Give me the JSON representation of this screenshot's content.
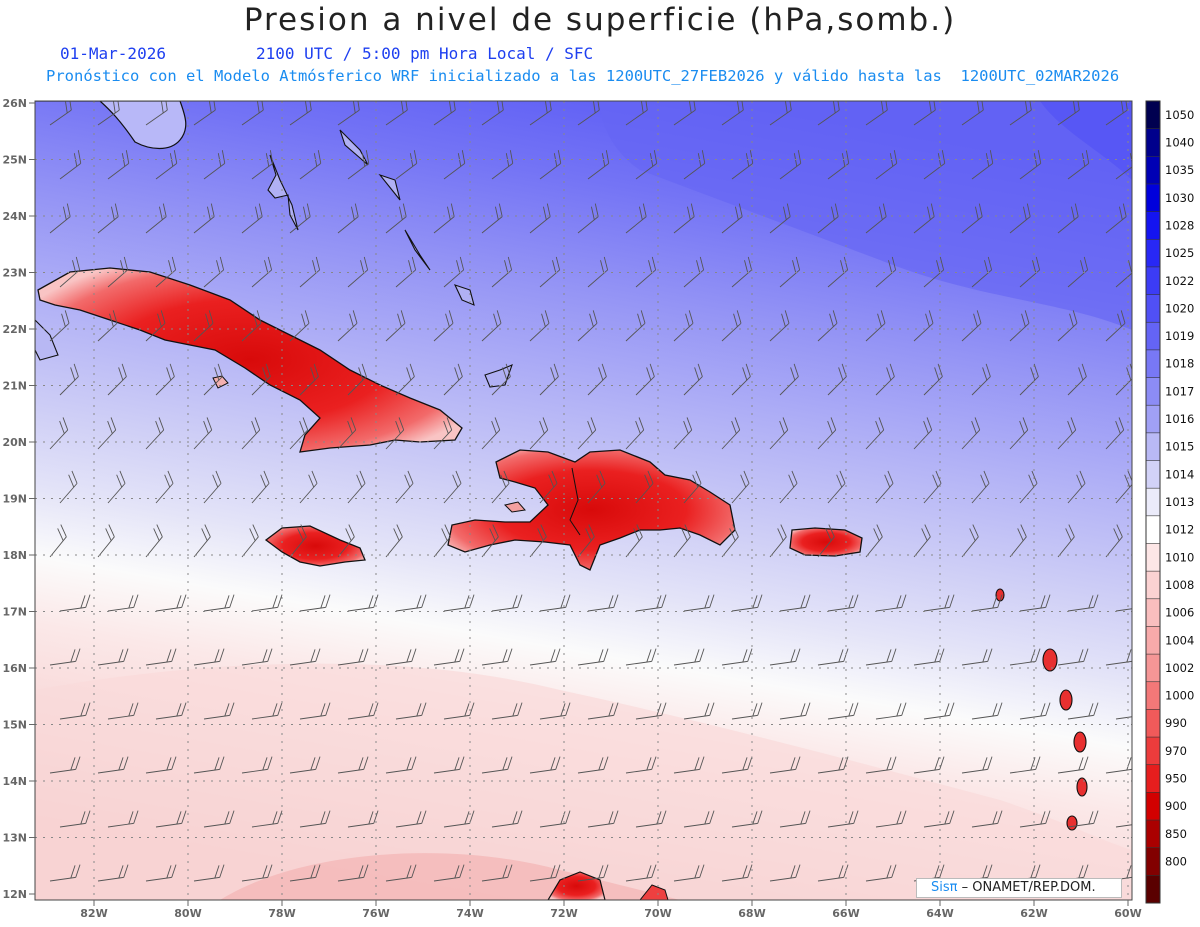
{
  "header": {
    "title": "Presion a nivel de superficie (hPa,somb.)",
    "date": "01-Mar-2026",
    "time_info": "2100 UTC / 5:00 pm Hora Local / SFC",
    "model_info": "Pronóstico con el Modelo Atmósferico WRF inicializado a las 1200UTC_27FEB2026 y válido hasta las  1200UTC_02MAR2026"
  },
  "map": {
    "lat_labels": [
      "26N",
      "25N",
      "24N",
      "23N",
      "22N",
      "21N",
      "20N",
      "19N",
      "18N",
      "17N",
      "16N",
      "15N",
      "14N",
      "13N",
      "12N"
    ],
    "lon_labels": [
      "82W",
      "80W",
      "78W",
      "76W",
      "74W",
      "72W",
      "70W",
      "68W",
      "66W",
      "64W",
      "62W",
      "60W"
    ],
    "land_colors": {
      "high": "#e81010",
      "mid": "#f05050",
      "low": "#f8b8b8"
    },
    "sea_gradient": [
      "#5d5df5",
      "#7575f5",
      "#9494f5",
      "#b0b0f5",
      "#cacaf5",
      "#e2e2f7",
      "#fafafa",
      "#fbe8e8",
      "#f8d6d6",
      "#f5c8c8"
    ]
  },
  "colorbar": {
    "labels": [
      "1050",
      "1040",
      "1035",
      "1030",
      "1028",
      "1025",
      "1022",
      "1020",
      "1019",
      "1018",
      "1017",
      "1016",
      "1015",
      "1014",
      "1013",
      "1012",
      "1010",
      "1008",
      "1006",
      "1004",
      "1002",
      "1000",
      "990",
      "970",
      "950",
      "900",
      "850",
      "800"
    ],
    "colors": [
      "#000050",
      "#00008c",
      "#0000b4",
      "#0000dc",
      "#1414f0",
      "#2828f5",
      "#3c3cf5",
      "#5050f5",
      "#6464f5",
      "#7878f5",
      "#8c8cf5",
      "#a0a0f5",
      "#b9b9f5",
      "#d2d2f7",
      "#ebebfa",
      "#ffffff",
      "#fde6e6",
      "#fbd2d2",
      "#f9bebe",
      "#f7aaaa",
      "#f59696",
      "#f37878",
      "#f05a5a",
      "#ec3c3c",
      "#e61e1e",
      "#d20000",
      "#aa0000",
      "#820000",
      "#5a0000"
    ]
  },
  "credit": {
    "sis": "Sisπ",
    "rest": " – ONAMET/REP.DOM."
  }
}
